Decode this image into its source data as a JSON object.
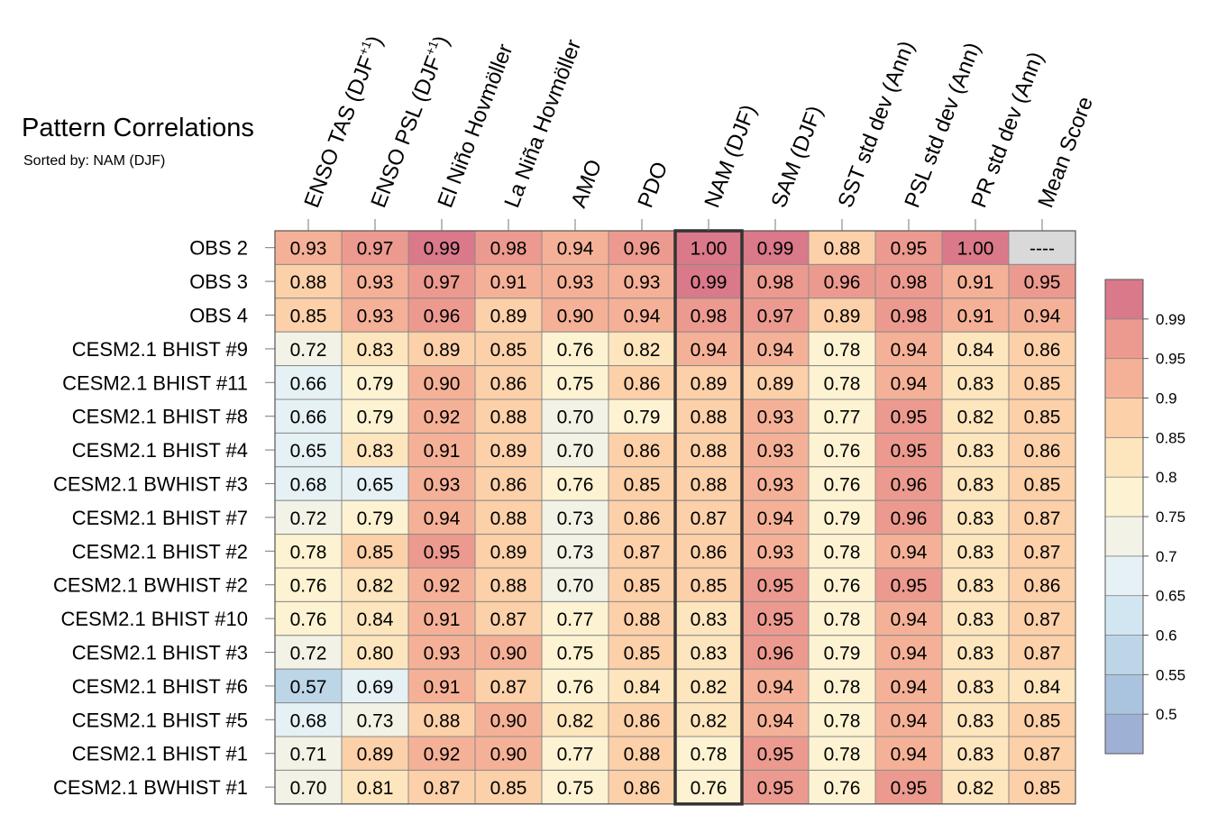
{
  "title": "Pattern Correlations",
  "subtitle": "Sorted by: NAM (DJF)",
  "chart_data": {
    "type": "heatmap",
    "title": "Pattern Correlations",
    "subtitle": "Sorted by: NAM (DJF)",
    "columns": [
      {
        "base": "ENSO TAS (DJF",
        "sup": "+1",
        "tail": ")"
      },
      {
        "base": "ENSO PSL (DJF",
        "sup": "+1",
        "tail": ")"
      },
      {
        "base": "El Niño Hovmöller"
      },
      {
        "base": "La Niña Hovmöller"
      },
      {
        "base": "AMO"
      },
      {
        "base": "PDO"
      },
      {
        "base": "NAM (DJF)"
      },
      {
        "base": "SAM (DJF)"
      },
      {
        "base": "SST std dev (Ann)"
      },
      {
        "base": "PSL std dev (Ann)"
      },
      {
        "base": "PR std dev (Ann)"
      },
      {
        "base": "Mean Score"
      }
    ],
    "rows": [
      "OBS 2",
      "OBS 3",
      "OBS 4",
      "CESM2.1 BHIST #9",
      "CESM2.1 BHIST #11",
      "CESM2.1 BHIST #8",
      "CESM2.1 BHIST #4",
      "CESM2.1 BWHIST #3",
      "CESM2.1 BHIST #7",
      "CESM2.1 BHIST #2",
      "CESM2.1 BWHIST #2",
      "CESM2.1 BHIST #10",
      "CESM2.1 BHIST #3",
      "CESM2.1 BHIST #6",
      "CESM2.1 BHIST #5",
      "CESM2.1 BHIST #1",
      "CESM2.1 BWHIST #1"
    ],
    "values": [
      [
        0.93,
        0.97,
        0.99,
        0.98,
        0.94,
        0.96,
        1.0,
        0.99,
        0.88,
        0.95,
        1.0,
        null
      ],
      [
        0.88,
        0.93,
        0.97,
        0.91,
        0.93,
        0.93,
        0.99,
        0.98,
        0.96,
        0.98,
        0.91,
        0.95
      ],
      [
        0.85,
        0.93,
        0.96,
        0.89,
        0.9,
        0.94,
        0.98,
        0.97,
        0.89,
        0.98,
        0.91,
        0.94
      ],
      [
        0.72,
        0.83,
        0.89,
        0.85,
        0.76,
        0.82,
        0.94,
        0.94,
        0.78,
        0.94,
        0.84,
        0.86
      ],
      [
        0.66,
        0.79,
        0.9,
        0.86,
        0.75,
        0.86,
        0.89,
        0.89,
        0.78,
        0.94,
        0.83,
        0.85
      ],
      [
        0.66,
        0.79,
        0.92,
        0.88,
        0.7,
        0.79,
        0.88,
        0.93,
        0.77,
        0.95,
        0.82,
        0.85
      ],
      [
        0.65,
        0.83,
        0.91,
        0.89,
        0.7,
        0.86,
        0.88,
        0.93,
        0.76,
        0.95,
        0.83,
        0.86
      ],
      [
        0.68,
        0.65,
        0.93,
        0.86,
        0.76,
        0.85,
        0.88,
        0.93,
        0.76,
        0.96,
        0.83,
        0.85
      ],
      [
        0.72,
        0.79,
        0.94,
        0.88,
        0.73,
        0.86,
        0.87,
        0.94,
        0.79,
        0.96,
        0.83,
        0.87
      ],
      [
        0.78,
        0.85,
        0.95,
        0.89,
        0.73,
        0.87,
        0.86,
        0.93,
        0.78,
        0.94,
        0.83,
        0.87
      ],
      [
        0.76,
        0.82,
        0.92,
        0.88,
        0.7,
        0.85,
        0.85,
        0.95,
        0.76,
        0.95,
        0.83,
        0.86
      ],
      [
        0.76,
        0.84,
        0.91,
        0.87,
        0.77,
        0.88,
        0.83,
        0.95,
        0.78,
        0.94,
        0.83,
        0.87
      ],
      [
        0.72,
        0.8,
        0.93,
        0.9,
        0.75,
        0.85,
        0.83,
        0.96,
        0.79,
        0.94,
        0.83,
        0.87
      ],
      [
        0.57,
        0.69,
        0.91,
        0.87,
        0.76,
        0.84,
        0.82,
        0.94,
        0.78,
        0.94,
        0.83,
        0.84
      ],
      [
        0.68,
        0.73,
        0.88,
        0.9,
        0.82,
        0.86,
        0.82,
        0.94,
        0.78,
        0.94,
        0.83,
        0.85
      ],
      [
        0.71,
        0.89,
        0.92,
        0.9,
        0.77,
        0.88,
        0.78,
        0.95,
        0.78,
        0.94,
        0.83,
        0.87
      ],
      [
        0.7,
        0.81,
        0.87,
        0.85,
        0.75,
        0.86,
        0.76,
        0.95,
        0.76,
        0.95,
        0.82,
        0.85
      ]
    ],
    "missing_label": "----",
    "highlight_column": "NAM (DJF)",
    "colorbar": {
      "levels": [
        0.5,
        0.55,
        0.6,
        0.65,
        0.7,
        0.75,
        0.8,
        0.85,
        0.9,
        0.95,
        0.99
      ],
      "tick_labels": [
        "0.5",
        "0.55",
        "0.6",
        "0.65",
        "0.7",
        "0.75",
        "0.8",
        "0.85",
        "0.9",
        "0.95",
        "0.99"
      ],
      "colors": [
        "#9eb0d4",
        "#aac4df",
        "#bcd6e8",
        "#d1e6f0",
        "#e6f1f5",
        "#f2f2e6",
        "#fdf3d2",
        "#fde5bd",
        "#fcd0a8",
        "#f5b197",
        "#ec9a8f",
        "#d9798a"
      ]
    },
    "missing_color": "#d9d9d9"
  }
}
